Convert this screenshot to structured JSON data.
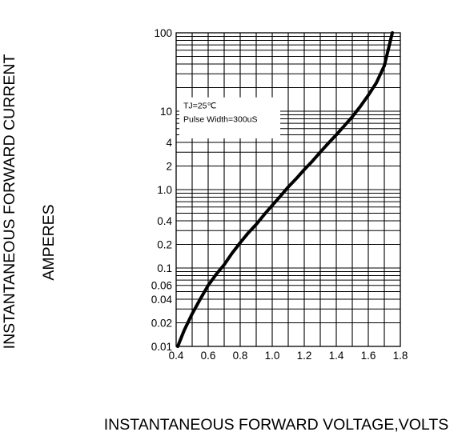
{
  "chart_data": {
    "type": "line",
    "xlabel": "INSTANTANEOUS FORWARD VOLTAGE,VOLTS",
    "ylabel_lines": [
      "INSTANTANEOUS FORWARD CURRENT",
      "AMPERES"
    ],
    "x_scale": "linear",
    "y_scale": "log",
    "xlim": [
      0.4,
      1.8
    ],
    "ylim": [
      0.01,
      100
    ],
    "x_ticks": [
      0.4,
      0.6,
      0.8,
      1.0,
      1.2,
      1.4,
      1.6,
      1.8
    ],
    "x_tick_labels": [
      "0.4",
      "0.6",
      "0.8",
      "1.0",
      "1.2",
      "1.4",
      "1.6",
      "1.8"
    ],
    "y_ticks": [
      0.01,
      0.02,
      0.04,
      0.06,
      0.1,
      0.2,
      0.4,
      1.0,
      2,
      4,
      10,
      100
    ],
    "y_tick_labels": [
      "0.01",
      "0.02",
      "0.04",
      "0.06",
      "0.1",
      "0.2",
      "0.4",
      "1.0",
      "2",
      "4",
      "10",
      "100"
    ],
    "grid": true,
    "annotation_lines": [
      "TJ=25℃",
      "Pulse Width=300uS"
    ],
    "series": [
      {
        "x": [
          0.41,
          0.45,
          0.5,
          0.55,
          0.6,
          0.65,
          0.7,
          0.75,
          0.8,
          0.85,
          0.9,
          0.95,
          1.0,
          1.05,
          1.1,
          1.15,
          1.2,
          1.25,
          1.3,
          1.35,
          1.4,
          1.45,
          1.5,
          1.55,
          1.6,
          1.65,
          1.7,
          1.75
        ],
        "y": [
          0.01,
          0.016,
          0.026,
          0.04,
          0.06,
          0.083,
          0.11,
          0.155,
          0.21,
          0.28,
          0.36,
          0.48,
          0.63,
          0.82,
          1.08,
          1.38,
          1.8,
          2.3,
          3.0,
          3.9,
          5.0,
          6.5,
          8.5,
          11.5,
          16,
          23,
          38,
          100
        ]
      }
    ],
    "colors": {
      "curve": "#000000",
      "grid": "#000000",
      "background": "#ffffff"
    }
  }
}
